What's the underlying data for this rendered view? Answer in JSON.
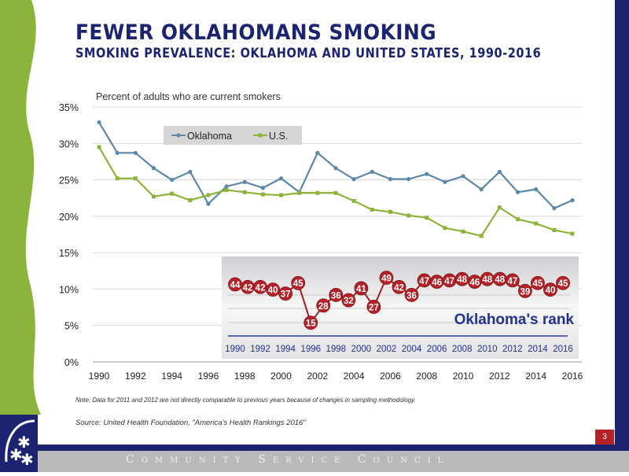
{
  "slide": {
    "title": "FEWER OKLAHOMANS SMOKING",
    "subtitle": "SMOKING PREVALENCE: OKLAHOMA AND UNITED STATES, 1990-2016",
    "note": "Note: Data for 2011 and 2012 are not directly comparable to previous years because of changes in sampling methodology.",
    "source": "Source:  United Health Foundation, \"America's Health Rankings 2016\"",
    "page_number": "3",
    "footer": "Community Service Council",
    "colors": {
      "navy": "#1c2370",
      "green": "#8ab43c",
      "oklahoma": "#5b87a8",
      "us": "#8db33a",
      "rank_marker": "#b52126"
    }
  },
  "chart_data": [
    {
      "type": "line",
      "title": "Percent of adults who are current smokers",
      "x": [
        1990,
        1991,
        1992,
        1993,
        1994,
        1995,
        1996,
        1997,
        1998,
        1999,
        2000,
        2001,
        2002,
        2003,
        2004,
        2005,
        2006,
        2007,
        2008,
        2009,
        2010,
        2011,
        2012,
        2013,
        2014,
        2015,
        2016
      ],
      "x_tick_labels": [
        "1990",
        "1992",
        "1994",
        "1996",
        "1998",
        "2000",
        "2002",
        "2004",
        "2006",
        "2008",
        "2010",
        "2012",
        "2014",
        "2016"
      ],
      "y_tick_labels": [
        "0%",
        "5%",
        "10%",
        "15%",
        "20%",
        "25%",
        "30%",
        "35%"
      ],
      "ylim": [
        0,
        35
      ],
      "grid": true,
      "legend": "top-left",
      "series": [
        {
          "name": "Oklahoma",
          "values": [
            32.9,
            28.7,
            28.7,
            26.6,
            25.0,
            26.1,
            21.7,
            24.1,
            24.7,
            23.9,
            25.2,
            23.3,
            28.7,
            26.6,
            25.1,
            26.1,
            25.1,
            25.1,
            25.8,
            24.7,
            25.5,
            23.7,
            26.1,
            23.3,
            23.7,
            21.1,
            22.2
          ]
        },
        {
          "name": "U.S.",
          "values": [
            29.5,
            25.2,
            25.2,
            22.7,
            23.1,
            22.2,
            22.9,
            23.6,
            23.3,
            23.0,
            22.9,
            23.2,
            23.2,
            23.2,
            22.1,
            20.9,
            20.6,
            20.1,
            19.8,
            18.4,
            17.9,
            17.3,
            21.2,
            19.6,
            19.0,
            18.1,
            17.6
          ]
        }
      ]
    },
    {
      "type": "line",
      "title": "Oklahoma's rank",
      "x": [
        1990,
        1991,
        1992,
        1993,
        1994,
        1995,
        1996,
        1997,
        1998,
        1999,
        2000,
        2001,
        2002,
        2003,
        2004,
        2005,
        2006,
        2007,
        2008,
        2009,
        2010,
        2011,
        2012,
        2013,
        2014,
        2015,
        2016
      ],
      "x_tick_labels": [
        "1990",
        "1992",
        "1994",
        "1996",
        "1998",
        "2000",
        "2002",
        "2004",
        "2006",
        "2008",
        "2010",
        "2012",
        "2014",
        "2016"
      ],
      "values": [
        44,
        42,
        42,
        40,
        37,
        45,
        15,
        28,
        36,
        32,
        41,
        27,
        49,
        42,
        36,
        47,
        46,
        47,
        48,
        46,
        48,
        48,
        47,
        39,
        45,
        40,
        45
      ]
    }
  ]
}
